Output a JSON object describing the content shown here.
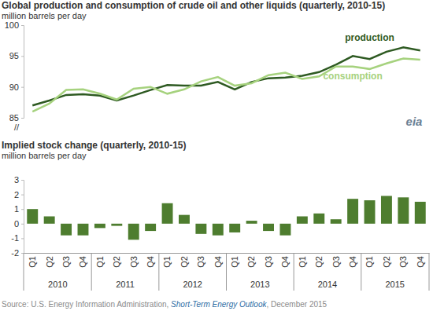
{
  "chart_data": [
    {
      "type": "line",
      "title": "Global production  and consumption  of crude oil and other liquids (quarterly, 2010-15)",
      "subtitle": "million barrels  per day",
      "axis_break": "//",
      "categories": [
        "Q1",
        "Q2",
        "Q3",
        "Q4",
        "Q1",
        "Q2",
        "Q3",
        "Q4",
        "Q1",
        "Q2",
        "Q3",
        "Q4",
        "Q1",
        "Q2",
        "Q3",
        "Q4",
        "Q1",
        "Q2",
        "Q3",
        "Q4",
        "Q1",
        "Q2",
        "Q3",
        "Q4"
      ],
      "series": [
        {
          "name": "production",
          "color": "#2e5a22",
          "values": [
            87.0,
            87.8,
            88.7,
            88.8,
            88.6,
            87.8,
            88.6,
            89.5,
            90.3,
            90.2,
            90.2,
            90.8,
            89.6,
            90.8,
            91.4,
            91.5,
            91.8,
            92.4,
            93.6,
            95.0,
            94.5,
            95.7,
            96.4,
            95.9
          ]
        },
        {
          "name": "consumption",
          "color": "#a6d27e",
          "values": [
            86.0,
            87.3,
            89.5,
            89.6,
            88.9,
            87.95,
            89.7,
            90.0,
            88.9,
            89.6,
            90.9,
            91.6,
            90.2,
            90.6,
            91.9,
            92.3,
            91.3,
            91.7,
            93.3,
            93.3,
            92.9,
            93.8,
            94.6,
            94.4
          ]
        }
      ],
      "ylim": [
        85,
        100
      ],
      "yticks": [
        85,
        90,
        95,
        100
      ],
      "grid": false,
      "tick_labels": "y"
    },
    {
      "type": "bar",
      "title": "Implied stock change (quarterly, 2010-15)",
      "subtitle": "million barrels  per day",
      "categories": [
        "Q1",
        "Q2",
        "Q3",
        "Q4",
        "Q1",
        "Q2",
        "Q3",
        "Q4",
        "Q1",
        "Q2",
        "Q3",
        "Q4",
        "Q1",
        "Q2",
        "Q3",
        "Q4",
        "Q1",
        "Q2",
        "Q3",
        "Q4",
        "Q1",
        "Q2",
        "Q3",
        "Q4"
      ],
      "years": [
        "2010",
        "2011",
        "2012",
        "2013",
        "2014",
        "2015"
      ],
      "values": [
        1.0,
        0.5,
        -0.8,
        -0.8,
        -0.3,
        -0.15,
        -1.1,
        -0.5,
        1.4,
        0.6,
        -0.7,
        -0.8,
        -0.6,
        0.2,
        -0.5,
        -0.8,
        0.5,
        0.7,
        0.3,
        1.7,
        1.6,
        1.9,
        1.8,
        1.5
      ],
      "color": "#4e7d2f",
      "ylim": [
        -2,
        3
      ],
      "yticks": [
        -2,
        -1,
        0,
        1,
        2,
        3
      ],
      "grid": false
    }
  ],
  "source": {
    "prefix": "Source: U.S. Energy Information Administration, ",
    "publication": "Short-Term Energy Outlook",
    "suffix": ", December 2015"
  },
  "logo": "eia"
}
